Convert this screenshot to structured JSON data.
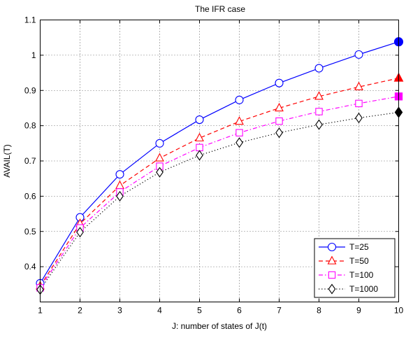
{
  "chart_data": {
    "type": "line",
    "title": "The IFR case",
    "xlabel": "J: number of states of J(t)",
    "ylabel": "AVAIL(T)",
    "xlim": [
      1,
      10
    ],
    "ylim": [
      0.3,
      1.1
    ],
    "x": [
      1,
      2,
      3,
      4,
      5,
      6,
      7,
      8,
      9,
      10
    ],
    "xticks": [
      "1",
      "2",
      "3",
      "4",
      "5",
      "6",
      "7",
      "8",
      "9",
      "10"
    ],
    "yticks": [
      "0.4",
      "0.5",
      "0.6",
      "0.7",
      "0.8",
      "0.9",
      "1",
      "1.1"
    ],
    "ytick_values": [
      0.4,
      0.5,
      0.6,
      0.7,
      0.8,
      0.9,
      1.0,
      1.1
    ],
    "grid": true,
    "legend_position": "bottom-right",
    "series": [
      {
        "name": "T=25",
        "color": "#0000ff",
        "marker": "circle",
        "line_style": "solid",
        "values": [
          0.353,
          0.54,
          0.662,
          0.75,
          0.817,
          0.873,
          0.921,
          0.963,
          1.002,
          1.038
        ]
      },
      {
        "name": "T=50",
        "color": "#ff0000",
        "marker": "triangle",
        "line_style": "dashed",
        "values": [
          0.345,
          0.522,
          0.63,
          0.708,
          0.765,
          0.812,
          0.85,
          0.883,
          0.91,
          0.935
        ]
      },
      {
        "name": "T=100",
        "color": "#ff00ff",
        "marker": "square",
        "line_style": "dashdot",
        "values": [
          0.34,
          0.51,
          0.612,
          0.685,
          0.738,
          0.78,
          0.813,
          0.84,
          0.863,
          0.883
        ]
      },
      {
        "name": "T=1000",
        "color": "#000000",
        "marker": "diamond",
        "line_style": "dotted",
        "values": [
          0.335,
          0.498,
          0.6,
          0.668,
          0.716,
          0.752,
          0.78,
          0.803,
          0.822,
          0.838
        ]
      }
    ]
  }
}
